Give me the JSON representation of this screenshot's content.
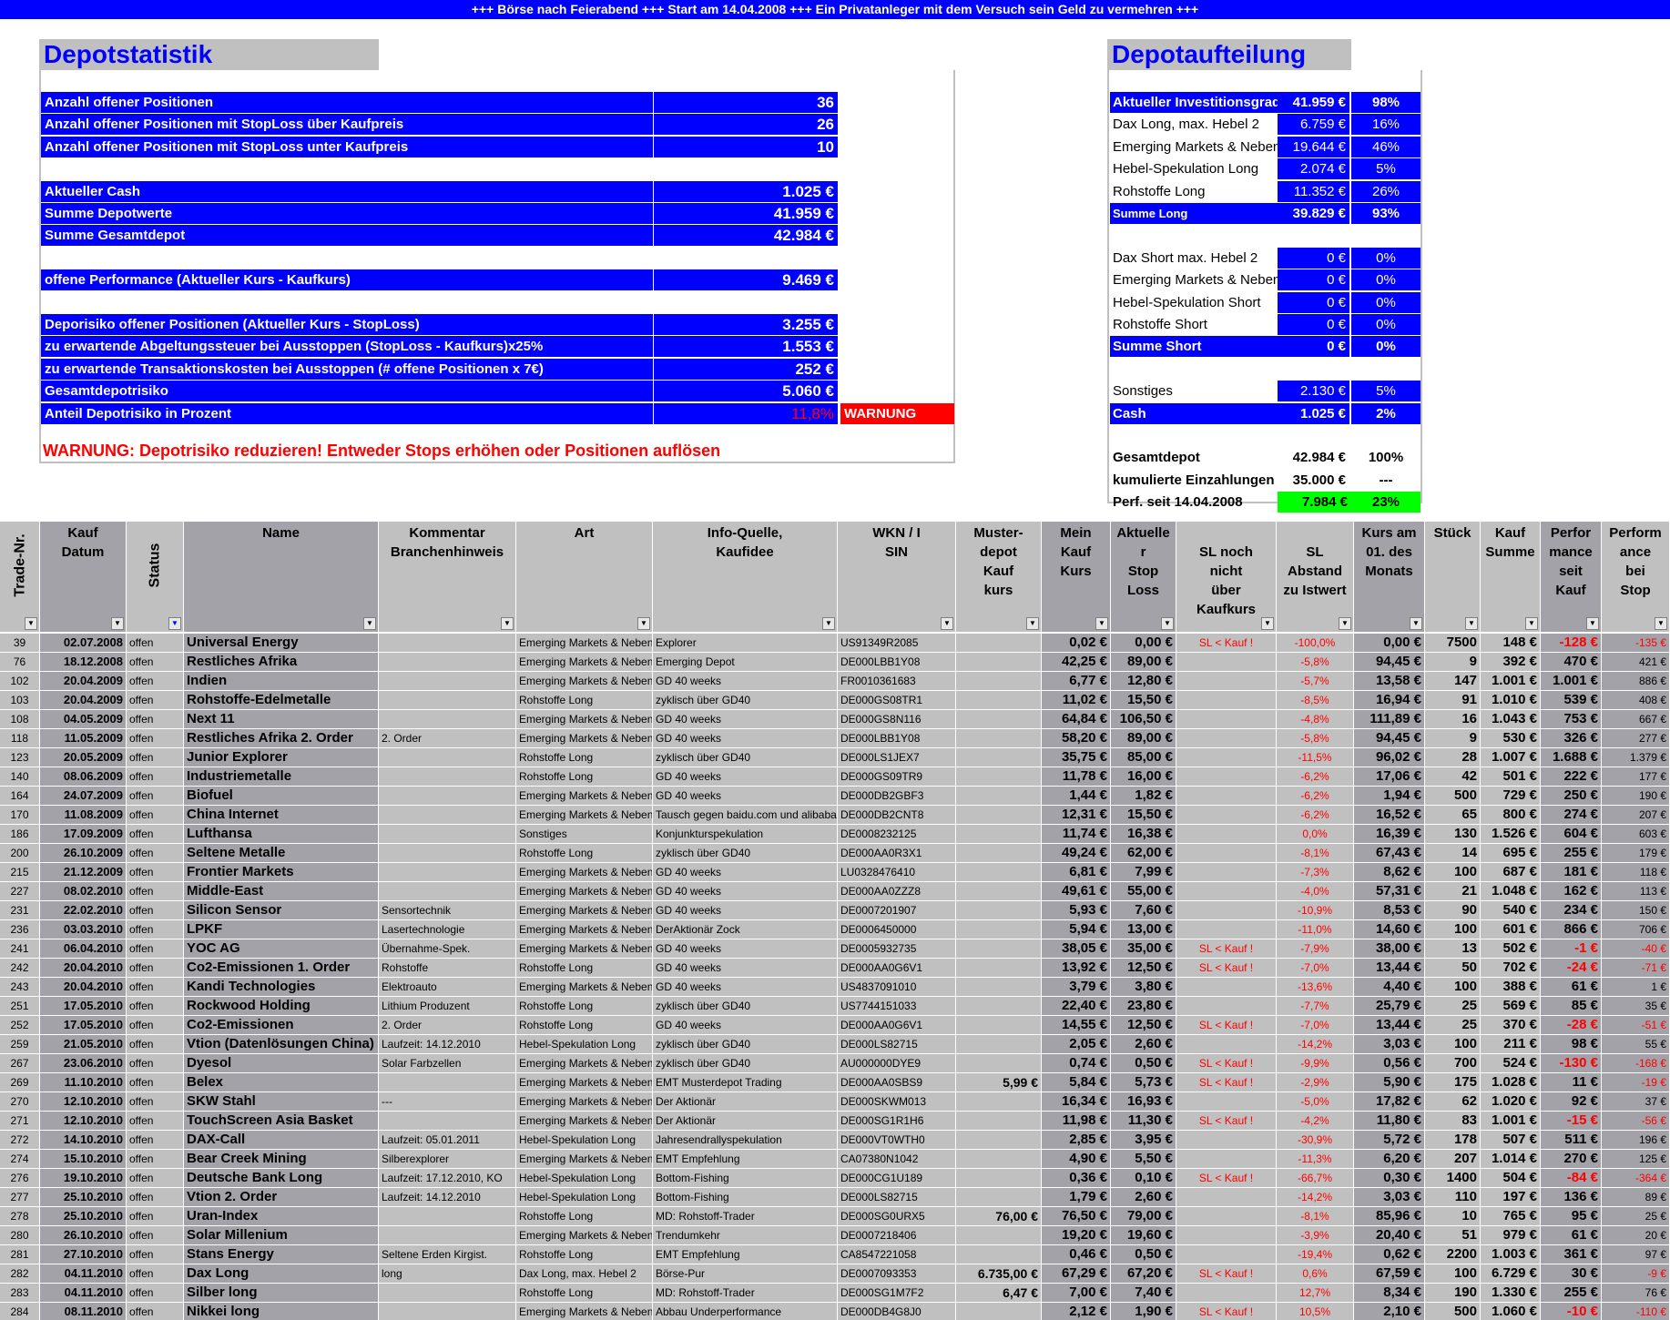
{
  "banner": "+++ Börse nach Feierabend +++ Start am 14.04.2008 +++ Ein Privatanleger mit dem Versuch sein Geld zu vermehren +++",
  "colors": {
    "accent": "#0000ff",
    "warning": "#ff0000",
    "positive": "#00ff00",
    "cell": "#c0c0c0",
    "cell_dark": "#a2a2a8"
  },
  "stat": {
    "title": "Depotstatistik",
    "rows": [
      {
        "label": "Anzahl offener Positionen",
        "value": "36"
      },
      {
        "label": "Anzahl offener Positionen mit StopLoss über Kaufpreis",
        "value": "26"
      },
      {
        "label": "Anzahl offener Positionen mit StopLoss unter Kaufpreis",
        "value": "10"
      },
      {
        "label": "Aktueller Cash",
        "value": "1.025 €"
      },
      {
        "label": "Summe Depotwerte",
        "value": "41.959 €"
      },
      {
        "label": "Summe Gesamtdepot",
        "value": "42.984 €"
      },
      {
        "label": "offene Performance (Aktueller Kurs - Kaufkurs)",
        "value": "9.469 €"
      },
      {
        "label": "Deporisiko offener Positionen (Aktueller Kurs - StopLoss)",
        "value": "3.255 €"
      },
      {
        "label": "zu erwartende Abgeltungssteuer bei Ausstoppen (StopLoss - Kaufkurs)x25%",
        "value": "1.553 €"
      },
      {
        "label": "zu erwartende Transaktionskosten bei Ausstoppen (# offene Positionen x 7€)",
        "value": "252 €"
      },
      {
        "label": "Gesamtdepotrisiko",
        "value": "5.060 €"
      },
      {
        "label": "Anteil Depotrisiko in Prozent",
        "value": "11,8%",
        "flag": "WARNUNG"
      }
    ],
    "warning": "WARNUNG: Depotrisiko reduzieren!  Entweder Stops erhöhen oder Positionen auflösen"
  },
  "alloc": {
    "title": "Depotaufteilung",
    "rows": [
      {
        "label": "Aktueller Investitionsgrad",
        "value": "41.959 €",
        "pct": "98%"
      },
      {
        "label": "Dax  Long, max. Hebel 2",
        "value": "6.759 €",
        "pct": "16%"
      },
      {
        "label": "Emerging Markets & Nebenwerte",
        "value": "19.644 €",
        "pct": "46%"
      },
      {
        "label": "Hebel-Spekulation Long",
        "value": "2.074 €",
        "pct": "5%"
      },
      {
        "label": "Rohstoffe Long",
        "value": "11.352 €",
        "pct": "26%"
      },
      {
        "label": "Summe Long",
        "value": "39.829 €",
        "pct": "93%"
      },
      {
        "label": "Dax  Short max. Hebel 2",
        "value": "0 €",
        "pct": "0%"
      },
      {
        "label": "Emerging Markets & Nebenwerte",
        "value": "0 €",
        "pct": "0%"
      },
      {
        "label": "Hebel-Spekulation Short",
        "value": "0 €",
        "pct": "0%"
      },
      {
        "label": "Rohstoffe Short",
        "value": "0 €",
        "pct": "0%"
      },
      {
        "label": "Summe Short",
        "value": "0 €",
        "pct": "0%"
      },
      {
        "label": "Sonstiges",
        "value": "2.130 €",
        "pct": "5%"
      },
      {
        "label": "Cash",
        "value": "1.025 €",
        "pct": "2%"
      },
      {
        "label": "Gesamtdepot",
        "value": "42.984 €",
        "pct": "100%"
      },
      {
        "label": "kumulierte Einzahlungen",
        "value": "35.000 €",
        "pct": "---"
      },
      {
        "label": "Perf. seit 14.04.2008",
        "value": "7.984 €",
        "pct": "23%"
      }
    ]
  },
  "table": {
    "headers": [
      "Trade-Nr.",
      "Kauf\nDatum",
      "Status",
      "Name",
      "Kommentar\nBranchenhinweis",
      "Art",
      "Info-Quelle,\nKaufidee",
      "WKN / I\nSIN",
      "Muster-\ndepot\nKauf\nkurs",
      "Mein\nKauf\nKurs",
      "Aktuelle\nr\nStop\nLoss",
      "\nSL noch\nnicht\nüber\nKaufkurs",
      "\nSL\nAbstand\nzu Istwert",
      "Kurs am\n01. des\nMonats",
      "Stück",
      "Kauf\nSumme",
      "Perfor\nmance\nseit\nKauf",
      "Perform\nance\nbei\nStop"
    ],
    "rows": [
      [
        "39",
        "02.07.2008",
        "offen",
        "Universal Energy",
        "",
        "Emerging Markets & Nebenwerte",
        "Explorer",
        "US91349R2085",
        "",
        "0,02 €",
        "0,00 €",
        "SL < Kauf !",
        "-100,0%",
        "0,00 €",
        "7500",
        "148 €",
        "-128 €",
        "-135 €"
      ],
      [
        "76",
        "18.12.2008",
        "offen",
        "Restliches Afrika",
        "",
        "Emerging Markets & Nebenwerte",
        "Emerging Depot",
        "DE000LBB1Y08",
        "",
        "42,25 €",
        "89,00 €",
        "",
        "-5,8%",
        "94,45 €",
        "9",
        "392 €",
        "470 €",
        "421 €"
      ],
      [
        "102",
        "20.04.2009",
        "offen",
        "Indien",
        "",
        "Emerging Markets & Nebenwerte",
        "GD 40 weeks",
        "FR0010361683",
        "",
        "6,77 €",
        "12,80 €",
        "",
        "-5,7%",
        "13,58 €",
        "147",
        "1.001 €",
        "1.001 €",
        "886 €"
      ],
      [
        "103",
        "20.04.2009",
        "offen",
        "Rohstoffe-Edelmetalle",
        "",
        "Rohstoffe Long",
        "zyklisch über GD40",
        "DE000GS08TR1",
        "",
        "11,02 €",
        "15,50 €",
        "",
        "-8,5%",
        "16,94 €",
        "91",
        "1.010 €",
        "539 €",
        "408 €"
      ],
      [
        "108",
        "04.05.2009",
        "offen",
        "Next 11",
        "",
        "Emerging Markets & Nebenwerte",
        "GD 40 weeks",
        "DE000GS8N116",
        "",
        "64,84 €",
        "106,50 €",
        "",
        "-4,8%",
        "111,89 €",
        "16",
        "1.043 €",
        "753 €",
        "667 €"
      ],
      [
        "118",
        "11.05.2009",
        "offen",
        "Restliches Afrika 2. Order",
        "2. Order",
        "Emerging Markets & Nebenwerte",
        "GD 40 weeks",
        "DE000LBB1Y08",
        "",
        "58,20 €",
        "89,00 €",
        "",
        "-5,8%",
        "94,45 €",
        "9",
        "530 €",
        "326 €",
        "277 €"
      ],
      [
        "123",
        "20.05.2009",
        "offen",
        "Junior Explorer",
        "",
        "Rohstoffe Long",
        "zyklisch über GD40",
        "DE000LS1JEX7",
        "",
        "35,75 €",
        "85,00 €",
        "",
        "-11,5%",
        "96,02 €",
        "28",
        "1.007 €",
        "1.688 €",
        "1.379 €"
      ],
      [
        "140",
        "08.06.2009",
        "offen",
        "Industriemetalle",
        "",
        "Rohstoffe Long",
        "GD 40 weeks",
        "DE000GS09TR9",
        "",
        "11,78 €",
        "16,00 €",
        "",
        "-6,2%",
        "17,06 €",
        "42",
        "501 €",
        "222 €",
        "177 €"
      ],
      [
        "164",
        "24.07.2009",
        "offen",
        "Biofuel",
        "",
        "Emerging Markets & Nebenwerte",
        "GD 40 weeks",
        "DE000DB2GBF3",
        "",
        "1,44 €",
        "1,82 €",
        "",
        "-6,2%",
        "1,94 €",
        "500",
        "729 €",
        "250 €",
        "190 €"
      ],
      [
        "170",
        "11.08.2009",
        "offen",
        "China Internet",
        "",
        "Emerging Markets & Nebenwerte",
        "Tausch gegen baidu.com und alibaba",
        "DE000DB2CNT8",
        "",
        "12,31 €",
        "15,50 €",
        "",
        "-6,2%",
        "16,52 €",
        "65",
        "800 €",
        "274 €",
        "207 €"
      ],
      [
        "186",
        "17.09.2009",
        "offen",
        "Lufthansa",
        "",
        "Sonstiges",
        "Konjunkturspekulation",
        "DE0008232125",
        "",
        "11,74 €",
        "16,38 €",
        "",
        "0,0%",
        "16,39 €",
        "130",
        "1.526 €",
        "604 €",
        "603 €"
      ],
      [
        "200",
        "26.10.2009",
        "offen",
        "Seltene Metalle",
        "",
        "Rohstoffe Long",
        "zyklisch über GD40",
        "DE000AA0R3X1",
        "",
        "49,24 €",
        "62,00 €",
        "",
        "-8,1%",
        "67,43 €",
        "14",
        "695 €",
        "255 €",
        "179 €"
      ],
      [
        "215",
        "21.12.2009",
        "offen",
        "Frontier Markets",
        "",
        "Emerging Markets & Nebenwerte",
        "GD 40 weeks",
        "LU0328476410",
        "",
        "6,81 €",
        "7,99 €",
        "",
        "-7,3%",
        "8,62 €",
        "100",
        "687 €",
        "181 €",
        "118 €"
      ],
      [
        "227",
        "08.02.2010",
        "offen",
        "Middle-East",
        "",
        "Emerging Markets & Nebenwerte",
        "GD 40 weeks",
        "DE000AA0ZZZ8",
        "",
        "49,61 €",
        "55,00 €",
        "",
        "-4,0%",
        "57,31 €",
        "21",
        "1.048 €",
        "162 €",
        "113 €"
      ],
      [
        "231",
        "22.02.2010",
        "offen",
        "Silicon Sensor",
        "Sensortechnik",
        "Emerging Markets & Nebenwerte",
        "GD 40 weeks",
        "DE0007201907",
        "",
        "5,93 €",
        "7,60 €",
        "",
        "-10,9%",
        "8,53 €",
        "90",
        "540 €",
        "234 €",
        "150 €"
      ],
      [
        "236",
        "03.03.2010",
        "offen",
        "LPKF",
        "Lasertechnologie",
        "Emerging Markets & Nebenwerte",
        "DerAktionär Zock",
        "DE0006450000",
        "",
        "5,94 €",
        "13,00 €",
        "",
        "-11,0%",
        "14,60 €",
        "100",
        "601 €",
        "866 €",
        "706 €"
      ],
      [
        "241",
        "06.04.2010",
        "offen",
        "YOC AG",
        "Übernahme-Spek.",
        "Emerging Markets & Nebenwerte",
        "GD 40 weeks",
        "DE0005932735",
        "",
        "38,05 €",
        "35,00 €",
        "SL < Kauf !",
        "-7,9%",
        "38,00 €",
        "13",
        "502 €",
        "-1 €",
        "-40 €"
      ],
      [
        "242",
        "20.04.2010",
        "offen",
        "Co2-Emissionen 1. Order",
        "Rohstoffe",
        "Rohstoffe Long",
        "GD 40 weeks",
        "DE000AA0G6V1",
        "",
        "13,92 €",
        "12,50 €",
        "SL < Kauf !",
        "-7,0%",
        "13,44 €",
        "50",
        "702 €",
        "-24 €",
        "-71 €"
      ],
      [
        "243",
        "20.04.2010",
        "offen",
        "Kandi Technologies",
        "Elektroauto",
        "Emerging Markets & Nebenwerte",
        "GD 40 weeks",
        "US4837091010",
        "",
        "3,79 €",
        "3,80 €",
        "",
        "-13,6%",
        "4,40 €",
        "100",
        "388 €",
        "61 €",
        "1 €"
      ],
      [
        "251",
        "17.05.2010",
        "offen",
        "Rockwood Holding",
        "Lithium Produzent",
        "Rohstoffe Long",
        "zyklisch über GD40",
        "US7744151033",
        "",
        "22,40 €",
        "23,80 €",
        "",
        "-7,7%",
        "25,79 €",
        "25",
        "569 €",
        "85 €",
        "35 €"
      ],
      [
        "252",
        "17.05.2010",
        "offen",
        "Co2-Emissionen",
        "2. Order",
        "Rohstoffe Long",
        "GD 40 weeks",
        "DE000AA0G6V1",
        "",
        "14,55 €",
        "12,50 €",
        "SL < Kauf !",
        "-7,0%",
        "13,44 €",
        "25",
        "370 €",
        "-28 €",
        "-51 €"
      ],
      [
        "259",
        "21.05.2010",
        "offen",
        "Vtion (Datenlösungen China)",
        "Laufzeit: 14.12.2010",
        "Hebel-Spekulation Long",
        "zyklisch über GD40",
        "DE000LS82715",
        "",
        "2,05 €",
        "2,60 €",
        "",
        "-14,2%",
        "3,03 €",
        "100",
        "211 €",
        "98 €",
        "55 €"
      ],
      [
        "267",
        "23.06.2010",
        "offen",
        "Dyesol",
        "Solar Farbzellen",
        "Emerging Markets & Nebenwerte",
        "zyklisch über GD40",
        "AU000000DYE9",
        "",
        "0,74 €",
        "0,50 €",
        "SL < Kauf !",
        "-9,9%",
        "0,56 €",
        "700",
        "524 €",
        "-130 €",
        "-168 €"
      ],
      [
        "269",
        "11.10.2010",
        "offen",
        "Belex",
        "",
        "Emerging Markets & Nebenwerte",
        "EMT Musterdepot Trading",
        "DE000AA0SBS9",
        "5,99 €",
        "5,84 €",
        "5,73 €",
        "SL < Kauf !",
        "-2,9%",
        "5,90 €",
        "175",
        "1.028 €",
        "11 €",
        "-19 €"
      ],
      [
        "270",
        "12.10.2010",
        "offen",
        "SKW Stahl",
        " ---",
        "Emerging Markets & Nebenwerte",
        "Der Aktionär",
        "DE000SKWM013",
        "",
        "16,34 €",
        "16,93 €",
        "",
        "-5,0%",
        "17,82 €",
        "62",
        "1.020 €",
        "92 €",
        "37 €"
      ],
      [
        "271",
        "12.10.2010",
        "offen",
        "TouchScreen Asia Basket",
        "",
        "Emerging Markets & Nebenwerte",
        "Der Aktionär",
        "DE000SG1R1H6",
        "",
        "11,98 €",
        "11,30 €",
        "SL < Kauf !",
        "-4,2%",
        "11,80 €",
        "83",
        "1.001 €",
        "-15 €",
        "-56 €"
      ],
      [
        "272",
        "14.10.2010",
        "offen",
        "DAX-Call",
        "Laufzeit: 05.01.2011",
        "Hebel-Spekulation Long",
        "Jahresendrallyspekulation",
        "DE000VT0WTH0",
        "",
        "2,85 €",
        "3,95 €",
        "",
        "-30,9%",
        "5,72 €",
        "178",
        "507 €",
        "511 €",
        "196 €"
      ],
      [
        "274",
        "15.10.2010",
        "offen",
        "Bear Creek Mining",
        "Silberexplorer",
        "Emerging Markets & Nebenwerte",
        "EMT Empfehlung",
        "CA07380N1042",
        "",
        "4,90 €",
        "5,50 €",
        "",
        "-11,3%",
        "6,20 €",
        "207",
        "1.014 €",
        "270 €",
        "125 €"
      ],
      [
        "276",
        "19.10.2010",
        "offen",
        "Deutsche Bank Long",
        "Laufzeit: 17.12.2010, KO",
        "Hebel-Spekulation Long",
        "Bottom-Fishing",
        "DE000CG1U189",
        "",
        "0,36 €",
        "0,10 €",
        "SL < Kauf !",
        "-66,7%",
        "0,30 €",
        "1400",
        "504 €",
        "-84 €",
        "-364 €"
      ],
      [
        "277",
        "25.10.2010",
        "offen",
        "Vtion 2. Order",
        "Laufzeit: 14.12.2010",
        "Hebel-Spekulation Long",
        "Bottom-Fishing",
        "DE000LS82715",
        "",
        "1,79 €",
        "2,60 €",
        "",
        "-14,2%",
        "3,03 €",
        "110",
        "197 €",
        "136 €",
        "89 €"
      ],
      [
        "278",
        "25.10.2010",
        "offen",
        "Uran-Index",
        "",
        "Rohstoffe Long",
        "MD: Rohstoff-Trader",
        "DE000SG0URX5",
        "76,00 €",
        "76,50 €",
        "79,00 €",
        "",
        "-8,1%",
        "85,96 €",
        "10",
        "765 €",
        "95 €",
        "25 €"
      ],
      [
        "280",
        "26.10.2010",
        "offen",
        "Solar Millenium",
        "",
        "Emerging Markets & Nebenwerte",
        "Trendumkehr",
        "DE0007218406",
        "",
        "19,20 €",
        "19,60 €",
        "",
        "-3,9%",
        "20,40 €",
        "51",
        "979 €",
        "61 €",
        "20 €"
      ],
      [
        "281",
        "27.10.2010",
        "offen",
        "Stans Energy",
        "Seltene Erden Kirgist.",
        "Rohstoffe Long",
        "EMT Empfehlung",
        "CA8547221058",
        "",
        "0,46 €",
        "0,50 €",
        "",
        "-19,4%",
        "0,62 €",
        "2200",
        "1.003 €",
        "361 €",
        "97 €"
      ],
      [
        "282",
        "04.11.2010",
        "offen",
        "Dax Long",
        "long",
        "Dax  Long, max. Hebel 2",
        "Börse-Pur",
        "DE0007093353",
        "6.735,00 €",
        "67,29 €",
        "67,20 €",
        "SL < Kauf !",
        "0,6%",
        "67,59 €",
        "100",
        "6.729 €",
        "30 €",
        "-9 €"
      ],
      [
        "283",
        "04.11.2010",
        "offen",
        "Silber long",
        "",
        "Rohstoffe Long",
        "MD: Rohstoff-Trader",
        "DE000SG1M7F2",
        "6,47 €",
        "7,00 €",
        "7,40 €",
        "",
        "12,7%",
        "8,34 €",
        "190",
        "1.330 €",
        "255 €",
        "76 €"
      ],
      [
        "284",
        "08.11.2010",
        "offen",
        "Nikkei long",
        "",
        "Emerging Markets & Nebenwerte",
        "Abbau Underperformance",
        "DE000DB4G8J0",
        "",
        "2,12 €",
        "1,90 €",
        "SL < Kauf !",
        "10,5%",
        "2,10 €",
        "500",
        "1.060 €",
        "-10 €",
        "-110 €"
      ]
    ]
  }
}
